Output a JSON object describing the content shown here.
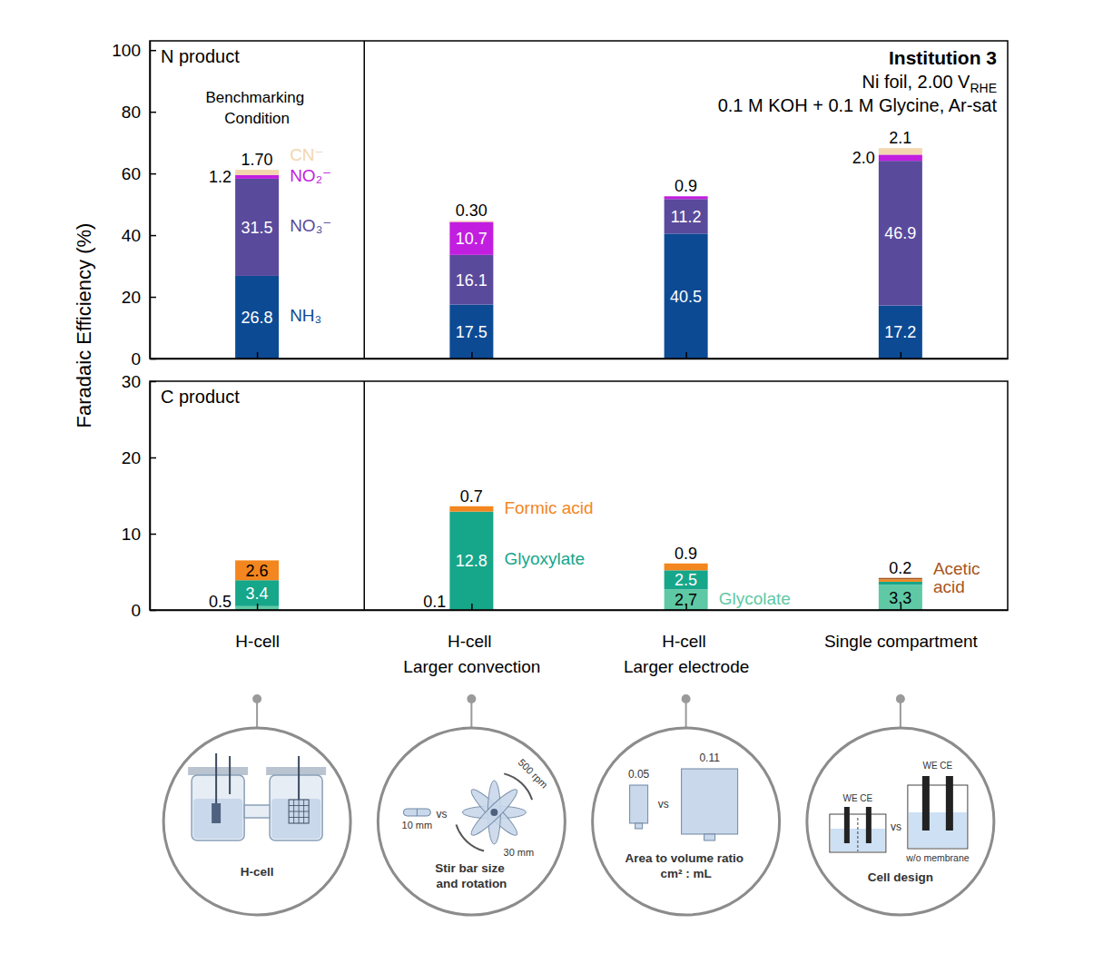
{
  "chart_data": [
    {
      "type": "bar",
      "title": "N product",
      "stacked": true,
      "data_labels": true,
      "tick_labels": "y",
      "categories": [
        "H-cell",
        "H-cell\nLarger convection",
        "H-cell\nLarger electrode",
        "Single compartment"
      ],
      "ylim": [
        0,
        103
      ],
      "yticks": [
        0,
        20,
        40,
        60,
        80,
        100
      ],
      "y_label": "Faradaic Efficiency (%)",
      "annotations": [
        {
          "text": "Benchmarking\nCondition"
        },
        {
          "text": "Institution 3"
        },
        {
          "text": "Ni foil, 2.00 V",
          "subscript": "RHE"
        },
        {
          "text": "0.1 M KOH + 0.1 M Glycine, Ar-sat"
        }
      ],
      "series": [
        {
          "name": "NH₃",
          "color": "#0d4a94",
          "values": [
            26.8,
            17.5,
            40.5,
            17.2
          ]
        },
        {
          "name": "NO₃⁻",
          "color": "#5a4a9c",
          "values": [
            31.5,
            16.1,
            11.2,
            46.9
          ]
        },
        {
          "name": "NO₂⁻",
          "color": "#c21ee0",
          "values": [
            1.2,
            10.7,
            0.9,
            2.0
          ],
          "value_labels": [
            "1.2",
            "10.7",
            "0.9",
            "2.0"
          ]
        },
        {
          "name": "CN⁻",
          "color": "#f3d6ae",
          "values": [
            1.7,
            0.3,
            0,
            2.1
          ],
          "value_labels": [
            "1.70",
            "0.30",
            null,
            "2.1"
          ]
        }
      ]
    },
    {
      "type": "bar",
      "title": "C product",
      "stacked": true,
      "data_labels": true,
      "categories": [
        "H-cell",
        "H-cell\nLarger convection",
        "H-cell\nLarger electrode",
        "Single compartment"
      ],
      "ylim": [
        0,
        30
      ],
      "yticks": [
        0,
        10,
        20,
        30
      ],
      "series": [
        {
          "name": "Glycolate",
          "color": "#5fc9a5",
          "values": [
            0.5,
            0.1,
            2.7,
            3.3
          ]
        },
        {
          "name": "Glyoxylate",
          "color": "#16a68a",
          "values": [
            3.4,
            12.8,
            2.5,
            0.4
          ],
          "value_labels": [
            "3.4",
            "12.8",
            "2.5",
            null
          ]
        },
        {
          "name": "Formic acid",
          "color": "#f3861e",
          "values": [
            2.6,
            0.7,
            0.9,
            0.3
          ],
          "value_labels": [
            "2.6",
            "0.7",
            "0.9",
            null
          ]
        },
        {
          "name": "Acetic acid",
          "color": "#a8561c",
          "values": [
            0,
            0,
            0,
            0.2
          ],
          "value_labels": [
            null,
            null,
            null,
            "0.2"
          ]
        }
      ]
    }
  ],
  "illustrations": [
    {
      "caption": "H-cell"
    },
    {
      "caption": "Stir bar size\nand rotation",
      "labels": [
        "10 mm",
        "vs",
        "30 mm",
        "500 rpm"
      ]
    },
    {
      "caption": "Area to volume ratio\ncm² : mL",
      "labels": [
        "0.05",
        "vs",
        "0.11"
      ]
    },
    {
      "caption": "Cell design",
      "labels": [
        "WE CE",
        "vs",
        "WE CE",
        "w/o membrane"
      ]
    }
  ]
}
